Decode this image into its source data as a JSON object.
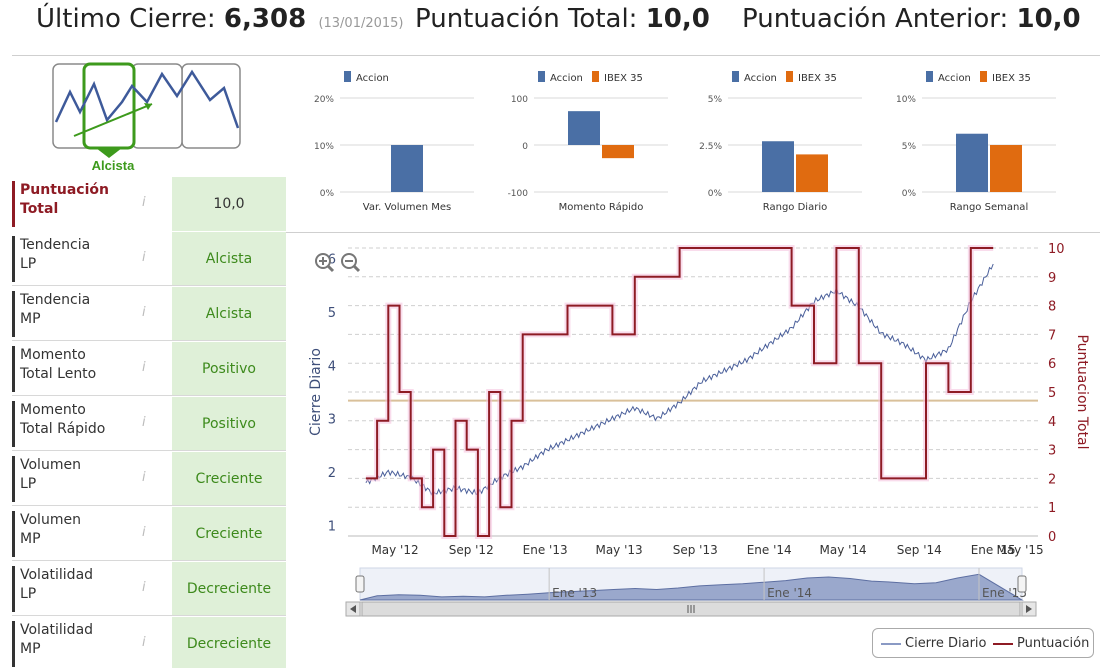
{
  "header": {
    "last_close_label": "Último Cierre:",
    "last_close_value": "6,308",
    "last_close_date": "(13/01/2015)",
    "total_score_label": "Puntuación Total:",
    "total_score_value": "10,0",
    "prev_score_label": "Puntuación Anterior:",
    "prev_score_value": "10,0"
  },
  "trend_logo": {
    "label": "Alcista",
    "accent": "#3d9a1c"
  },
  "indicators": [
    {
      "label_l1": "Puntuación",
      "label_l2": "Total",
      "value": "10,0",
      "info": "i"
    },
    {
      "label_l1": "Tendencia",
      "label_l2": "LP",
      "value": "Alcista",
      "info": "i"
    },
    {
      "label_l1": "Tendencia",
      "label_l2": "MP",
      "value": "Alcista",
      "info": "i"
    },
    {
      "label_l1": "Momento",
      "label_l2": "Total Lento",
      "value": "Positivo",
      "info": "i"
    },
    {
      "label_l1": "Momento",
      "label_l2": "Total Rápido",
      "value": "Positivo",
      "info": "i"
    },
    {
      "label_l1": "Volumen",
      "label_l2": "LP",
      "value": "Creciente",
      "info": "i"
    },
    {
      "label_l1": "Volumen",
      "label_l2": "MP",
      "value": "Creciente",
      "info": "i"
    },
    {
      "label_l1": "Volatilidad",
      "label_l2": "LP",
      "value": "Decreciente",
      "info": "i"
    },
    {
      "label_l1": "Volatilidad",
      "label_l2": "MP",
      "value": "Decreciente",
      "info": "i"
    }
  ],
  "chart_data": [
    {
      "type": "bar",
      "title": "",
      "categories": [
        "Var. Volumen Mes"
      ],
      "series": [
        {
          "name": "Accion",
          "values": [
            10
          ],
          "color": "#4a6fa5"
        }
      ],
      "yticks": [
        "20%",
        "10%",
        "0%"
      ],
      "ylim": [
        0,
        20
      ]
    },
    {
      "type": "bar",
      "categories": [
        "Momento Rápido"
      ],
      "series": [
        {
          "name": "Accion",
          "values": [
            72
          ],
          "color": "#4a6fa5"
        },
        {
          "name": "IBEX 35",
          "values": [
            -28
          ],
          "color": "#e06b10"
        }
      ],
      "yticks": [
        "100",
        "0",
        "-100"
      ],
      "ylim": [
        -100,
        100
      ]
    },
    {
      "type": "bar",
      "categories": [
        "Rango Diario"
      ],
      "series": [
        {
          "name": "Accion",
          "values": [
            2.7
          ],
          "color": "#4a6fa5"
        },
        {
          "name": "IBEX 35",
          "values": [
            2.0
          ],
          "color": "#e06b10"
        }
      ],
      "yticks": [
        "5%",
        "2.5%",
        "0%"
      ],
      "ylim": [
        0,
        5
      ]
    },
    {
      "type": "bar",
      "categories": [
        "Rango Semanal"
      ],
      "series": [
        {
          "name": "Accion",
          "values": [
            6.2
          ],
          "color": "#4a6fa5"
        },
        {
          "name": "IBEX 35",
          "values": [
            5.0
          ],
          "color": "#e06b10"
        }
      ],
      "yticks": [
        "10%",
        "5%",
        "0%"
      ],
      "ylim": [
        0,
        10
      ]
    },
    {
      "type": "line",
      "ylabel_left": "Cierre Diario",
      "ylabel_right": "Puntuacion Total",
      "xticks": [
        "May '12",
        "Sep '12",
        "Ene '13",
        "May '13",
        "Sep '13",
        "Ene '14",
        "May '14",
        "Sep '14",
        "Ene '15",
        "May '15"
      ],
      "ylim_left": [
        0.8,
        6.2
      ],
      "ylim_right": [
        0,
        10
      ],
      "yticks_left": [
        "1",
        "2",
        "3",
        "4",
        "5",
        "6"
      ],
      "yticks_right": [
        "0",
        "1",
        "2",
        "3",
        "4",
        "5",
        "6",
        "7",
        "8",
        "9",
        "10"
      ],
      "reference_line": 4.7,
      "series": [
        {
          "name": "Cierre Diario",
          "axis": "left",
          "color": "#4a5f9a",
          "x": [
            2012.2,
            2012.3,
            2012.4,
            2012.5,
            2012.6,
            2012.7,
            2012.8,
            2012.9,
            2013.0,
            2013.1,
            2013.2,
            2013.3,
            2013.4,
            2013.5,
            2013.6,
            2013.7,
            2013.8,
            2013.9,
            2014.0,
            2014.1,
            2014.2,
            2014.3,
            2014.4,
            2014.5,
            2014.6,
            2014.7,
            2014.8,
            2014.9,
            2015.0
          ],
          "y": [
            1.8,
            2.0,
            1.9,
            1.6,
            1.7,
            1.6,
            1.9,
            2.1,
            2.4,
            2.6,
            2.8,
            3.0,
            3.2,
            3.0,
            3.3,
            3.7,
            3.9,
            4.1,
            4.4,
            4.7,
            5.2,
            5.4,
            5.1,
            4.6,
            4.4,
            4.1,
            4.3,
            5.2,
            5.9
          ]
        },
        {
          "name": "Puntuación",
          "axis": "right",
          "color": "#8e1b24",
          "x": [
            2012.2,
            2012.25,
            2012.3,
            2012.35,
            2012.4,
            2012.45,
            2012.5,
            2012.55,
            2012.6,
            2012.65,
            2012.7,
            2012.75,
            2012.8,
            2012.85,
            2012.9,
            2012.95,
            2013.0,
            2013.1,
            2013.2,
            2013.3,
            2013.4,
            2013.5,
            2013.6,
            2013.7,
            2013.8,
            2013.9,
            2014.0,
            2014.1,
            2014.2,
            2014.3,
            2014.4,
            2014.5,
            2014.6,
            2014.7,
            2014.8,
            2014.9,
            2015.0
          ],
          "y": [
            2,
            4,
            8,
            5,
            2,
            1,
            3,
            0,
            4,
            3,
            0,
            5,
            1,
            4,
            7,
            7,
            7,
            8,
            8,
            7,
            9,
            9,
            10,
            10,
            10,
            10,
            10,
            8,
            6,
            10,
            6,
            2,
            2,
            6,
            5,
            10,
            10
          ]
        }
      ],
      "navigator_labels": [
        "Ene '13",
        "Ene '14",
        "Ene '15"
      ]
    }
  ],
  "legend": {
    "series_1": "Cierre Diario",
    "series_2": "Puntuación"
  },
  "zoom": {
    "zoom_in": "zoom-in",
    "zoom_out": "zoom-out"
  }
}
